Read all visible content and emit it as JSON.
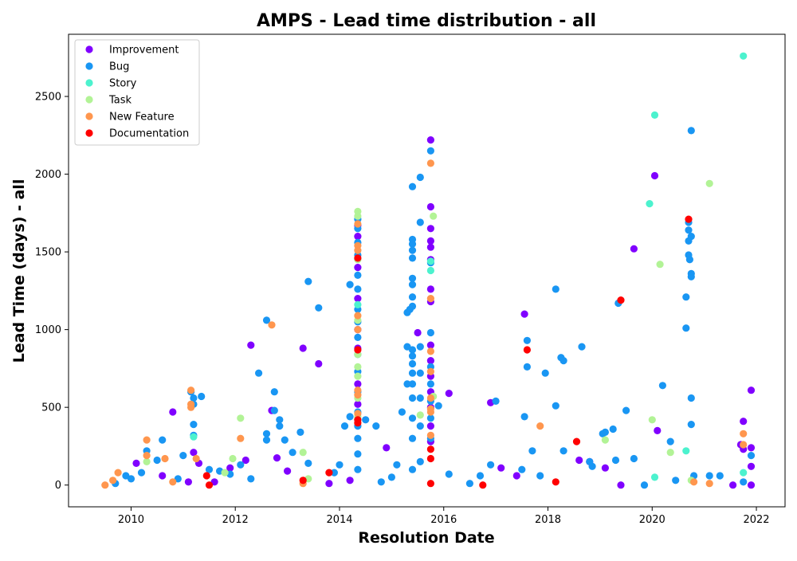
{
  "chart_data": {
    "type": "scatter",
    "title": "AMPS - Lead time distribution - all",
    "xlabel": "Resolution Date",
    "ylabel": "Lead Time (days) - all",
    "xlim": [
      2008.8,
      2022.55
    ],
    "ylim": [
      -140,
      2900
    ],
    "x_ticks": [
      2010,
      2012,
      2014,
      2016,
      2018,
      2020,
      2022
    ],
    "y_ticks": [
      0,
      500,
      1000,
      1500,
      2000,
      2500
    ],
    "grid": false,
    "legend_position": "top-left",
    "series": [
      {
        "name": "Improvement",
        "color": "#8000ff",
        "points": [
          [
            2010.1,
            140
          ],
          [
            2010.6,
            60
          ],
          [
            2010.8,
            470
          ],
          [
            2011.1,
            20
          ],
          [
            2011.2,
            210
          ],
          [
            2011.3,
            140
          ],
          [
            2011.6,
            20
          ],
          [
            2011.9,
            110
          ],
          [
            2012.2,
            160
          ],
          [
            2012.3,
            900
          ],
          [
            2012.7,
            480
          ],
          [
            2012.8,
            175
          ],
          [
            2013.0,
            90
          ],
          [
            2013.3,
            880
          ],
          [
            2013.6,
            780
          ],
          [
            2013.8,
            10
          ],
          [
            2014.2,
            30
          ],
          [
            2014.35,
            1670
          ],
          [
            2014.35,
            1600
          ],
          [
            2014.35,
            1400
          ],
          [
            2014.35,
            1200
          ],
          [
            2014.35,
            1000
          ],
          [
            2014.35,
            880
          ],
          [
            2014.35,
            650
          ],
          [
            2014.35,
            520
          ],
          [
            2014.9,
            240
          ],
          [
            2015.5,
            980
          ],
          [
            2015.75,
            2220
          ],
          [
            2015.75,
            1790
          ],
          [
            2015.75,
            1650
          ],
          [
            2015.75,
            1570
          ],
          [
            2015.75,
            1530
          ],
          [
            2015.75,
            1450
          ],
          [
            2015.75,
            1260
          ],
          [
            2015.75,
            1180
          ],
          [
            2015.75,
            900
          ],
          [
            2015.75,
            800
          ],
          [
            2015.75,
            700
          ],
          [
            2015.75,
            600
          ],
          [
            2015.75,
            500
          ],
          [
            2015.75,
            380
          ],
          [
            2015.75,
            280
          ],
          [
            2016.1,
            590
          ],
          [
            2016.9,
            530
          ],
          [
            2017.1,
            110
          ],
          [
            2017.4,
            60
          ],
          [
            2017.55,
            1100
          ],
          [
            2018.6,
            160
          ],
          [
            2018.8,
            150
          ],
          [
            2019.1,
            110
          ],
          [
            2019.4,
            0
          ],
          [
            2019.65,
            1520
          ],
          [
            2020.05,
            1990
          ],
          [
            2020.1,
            350
          ],
          [
            2021.55,
            0
          ],
          [
            2021.7,
            260
          ],
          [
            2021.75,
            410
          ],
          [
            2021.75,
            230
          ],
          [
            2021.9,
            610
          ],
          [
            2021.9,
            240
          ],
          [
            2021.9,
            120
          ],
          [
            2021.9,
            0
          ]
        ]
      },
      {
        "name": "Bug",
        "color": "#1996f3",
        "points": [
          [
            2009.7,
            10
          ],
          [
            2009.9,
            60
          ],
          [
            2010.0,
            40
          ],
          [
            2010.2,
            80
          ],
          [
            2010.3,
            220
          ],
          [
            2010.5,
            160
          ],
          [
            2010.6,
            290
          ],
          [
            2010.9,
            40
          ],
          [
            2011.0,
            190
          ],
          [
            2011.15,
            600
          ],
          [
            2011.2,
            560
          ],
          [
            2011.2,
            520
          ],
          [
            2011.2,
            390
          ],
          [
            2011.2,
            320
          ],
          [
            2011.35,
            570
          ],
          [
            2011.5,
            100
          ],
          [
            2011.7,
            90
          ],
          [
            2011.9,
            70
          ],
          [
            2012.1,
            130
          ],
          [
            2012.3,
            40
          ],
          [
            2012.45,
            720
          ],
          [
            2012.6,
            1060
          ],
          [
            2012.6,
            330
          ],
          [
            2012.6,
            290
          ],
          [
            2012.75,
            600
          ],
          [
            2012.75,
            480
          ],
          [
            2012.85,
            420
          ],
          [
            2012.85,
            380
          ],
          [
            2012.95,
            290
          ],
          [
            2013.1,
            210
          ],
          [
            2013.25,
            340
          ],
          [
            2013.4,
            1310
          ],
          [
            2013.4,
            140
          ],
          [
            2013.6,
            1140
          ],
          [
            2013.9,
            80
          ],
          [
            2014.0,
            130
          ],
          [
            2014.1,
            380
          ],
          [
            2014.2,
            1290
          ],
          [
            2014.2,
            440
          ],
          [
            2014.35,
            1710
          ],
          [
            2014.35,
            1650
          ],
          [
            2014.35,
            1560
          ],
          [
            2014.35,
            1480
          ],
          [
            2014.35,
            1350
          ],
          [
            2014.35,
            1260
          ],
          [
            2014.35,
            1130
          ],
          [
            2014.35,
            1050
          ],
          [
            2014.35,
            950
          ],
          [
            2014.35,
            840
          ],
          [
            2014.35,
            730
          ],
          [
            2014.35,
            600
          ],
          [
            2014.35,
            470
          ],
          [
            2014.35,
            420
          ],
          [
            2014.35,
            380
          ],
          [
            2014.35,
            300
          ],
          [
            2014.35,
            200
          ],
          [
            2014.35,
            100
          ],
          [
            2014.5,
            420
          ],
          [
            2014.7,
            380
          ],
          [
            2014.8,
            20
          ],
          [
            2015.0,
            50
          ],
          [
            2015.1,
            130
          ],
          [
            2015.2,
            470
          ],
          [
            2015.3,
            650
          ],
          [
            2015.3,
            890
          ],
          [
            2015.3,
            1110
          ],
          [
            2015.35,
            1130
          ],
          [
            2015.4,
            1920
          ],
          [
            2015.4,
            1580
          ],
          [
            2015.4,
            1550
          ],
          [
            2015.4,
            1510
          ],
          [
            2015.4,
            1460
          ],
          [
            2015.4,
            1330
          ],
          [
            2015.4,
            1290
          ],
          [
            2015.4,
            1210
          ],
          [
            2015.4,
            1150
          ],
          [
            2015.4,
            870
          ],
          [
            2015.4,
            830
          ],
          [
            2015.4,
            780
          ],
          [
            2015.4,
            720
          ],
          [
            2015.4,
            650
          ],
          [
            2015.4,
            560
          ],
          [
            2015.4,
            430
          ],
          [
            2015.4,
            300
          ],
          [
            2015.4,
            100
          ],
          [
            2015.55,
            1980
          ],
          [
            2015.55,
            1690
          ],
          [
            2015.55,
            890
          ],
          [
            2015.55,
            720
          ],
          [
            2015.55,
            560
          ],
          [
            2015.55,
            380
          ],
          [
            2015.55,
            150
          ],
          [
            2015.75,
            2150
          ],
          [
            2015.75,
            1430
          ],
          [
            2015.75,
            980
          ],
          [
            2015.75,
            760
          ],
          [
            2015.75,
            650
          ],
          [
            2015.75,
            540
          ],
          [
            2015.75,
            430
          ],
          [
            2015.75,
            300
          ],
          [
            2015.9,
            510
          ],
          [
            2016.1,
            70
          ],
          [
            2016.5,
            10
          ],
          [
            2016.7,
            60
          ],
          [
            2016.9,
            130
          ],
          [
            2017.0,
            540
          ],
          [
            2017.5,
            100
          ],
          [
            2017.55,
            440
          ],
          [
            2017.6,
            930
          ],
          [
            2017.6,
            760
          ],
          [
            2017.7,
            220
          ],
          [
            2017.85,
            60
          ],
          [
            2017.95,
            720
          ],
          [
            2018.15,
            510
          ],
          [
            2018.15,
            1260
          ],
          [
            2018.25,
            820
          ],
          [
            2018.3,
            800
          ],
          [
            2018.3,
            220
          ],
          [
            2018.65,
            890
          ],
          [
            2018.8,
            150
          ],
          [
            2018.85,
            120
          ],
          [
            2019.05,
            330
          ],
          [
            2019.1,
            340
          ],
          [
            2019.25,
            360
          ],
          [
            2019.3,
            160
          ],
          [
            2019.35,
            1170
          ],
          [
            2019.5,
            480
          ],
          [
            2019.65,
            170
          ],
          [
            2019.85,
            0
          ],
          [
            2020.2,
            640
          ],
          [
            2020.35,
            280
          ],
          [
            2020.45,
            30
          ],
          [
            2020.65,
            1210
          ],
          [
            2020.65,
            1010
          ],
          [
            2020.7,
            1690
          ],
          [
            2020.7,
            1640
          ],
          [
            2020.7,
            1570
          ],
          [
            2020.7,
            1480
          ],
          [
            2020.72,
            1450
          ],
          [
            2020.75,
            2280
          ],
          [
            2020.75,
            1600
          ],
          [
            2020.75,
            1360
          ],
          [
            2020.75,
            1340
          ],
          [
            2020.75,
            560
          ],
          [
            2020.75,
            390
          ],
          [
            2020.8,
            60
          ],
          [
            2021.1,
            60
          ],
          [
            2021.3,
            60
          ],
          [
            2021.75,
            20
          ],
          [
            2021.9,
            190
          ]
        ]
      },
      {
        "name": "Story",
        "color": "#4cf2ce",
        "points": [
          [
            2011.2,
            310
          ],
          [
            2014.35,
            1160
          ],
          [
            2015.75,
            1440
          ],
          [
            2015.75,
            1380
          ],
          [
            2019.95,
            1810
          ],
          [
            2020.05,
            2380
          ],
          [
            2020.05,
            50
          ],
          [
            2020.65,
            220
          ],
          [
            2021.75,
            2760
          ],
          [
            2021.75,
            80
          ]
        ]
      },
      {
        "name": "Task",
        "color": "#b2f396",
        "points": [
          [
            2010.3,
            150
          ],
          [
            2011.8,
            80
          ],
          [
            2011.95,
            170
          ],
          [
            2012.1,
            430
          ],
          [
            2013.3,
            210
          ],
          [
            2013.4,
            40
          ],
          [
            2014.35,
            1760
          ],
          [
            2014.35,
            1730
          ],
          [
            2014.35,
            1450
          ],
          [
            2014.35,
            1060
          ],
          [
            2014.35,
            840
          ],
          [
            2014.35,
            760
          ],
          [
            2014.35,
            700
          ],
          [
            2014.35,
            560
          ],
          [
            2014.35,
            440
          ],
          [
            2015.55,
            450
          ],
          [
            2015.8,
            1730
          ],
          [
            2015.8,
            570
          ],
          [
            2019.1,
            290
          ],
          [
            2020.0,
            420
          ],
          [
            2020.15,
            1420
          ],
          [
            2020.35,
            210
          ],
          [
            2020.75,
            30
          ],
          [
            2021.1,
            1940
          ]
        ]
      },
      {
        "name": "New Feature",
        "color": "#ff964e",
        "points": [
          [
            2009.5,
            0
          ],
          [
            2009.65,
            30
          ],
          [
            2009.75,
            80
          ],
          [
            2010.3,
            290
          ],
          [
            2010.3,
            190
          ],
          [
            2010.65,
            170
          ],
          [
            2010.8,
            20
          ],
          [
            2011.15,
            610
          ],
          [
            2011.15,
            520
          ],
          [
            2011.15,
            500
          ],
          [
            2011.25,
            170
          ],
          [
            2012.1,
            300
          ],
          [
            2012.7,
            1030
          ],
          [
            2013.3,
            10
          ],
          [
            2014.35,
            1680
          ],
          [
            2014.35,
            1540
          ],
          [
            2014.35,
            1510
          ],
          [
            2014.35,
            1090
          ],
          [
            2014.35,
            1000
          ],
          [
            2014.35,
            610
          ],
          [
            2014.35,
            580
          ],
          [
            2014.35,
            460
          ],
          [
            2015.75,
            2070
          ],
          [
            2015.75,
            1200
          ],
          [
            2015.75,
            860
          ],
          [
            2015.75,
            730
          ],
          [
            2015.75,
            560
          ],
          [
            2015.75,
            490
          ],
          [
            2015.75,
            470
          ],
          [
            2015.75,
            320
          ],
          [
            2017.85,
            380
          ],
          [
            2020.8,
            20
          ],
          [
            2021.1,
            10
          ],
          [
            2021.75,
            330
          ],
          [
            2021.75,
            260
          ]
        ]
      },
      {
        "name": "Documentation",
        "color": "#ff0000",
        "points": [
          [
            2011.45,
            60
          ],
          [
            2011.5,
            0
          ],
          [
            2013.3,
            30
          ],
          [
            2013.8,
            80
          ],
          [
            2014.35,
            1460
          ],
          [
            2014.35,
            870
          ],
          [
            2014.35,
            420
          ],
          [
            2014.35,
            400
          ],
          [
            2015.75,
            230
          ],
          [
            2015.75,
            170
          ],
          [
            2015.75,
            10
          ],
          [
            2016.75,
            0
          ],
          [
            2017.6,
            870
          ],
          [
            2018.15,
            20
          ],
          [
            2018.55,
            280
          ],
          [
            2019.4,
            1190
          ],
          [
            2020.7,
            1710
          ]
        ]
      }
    ]
  }
}
